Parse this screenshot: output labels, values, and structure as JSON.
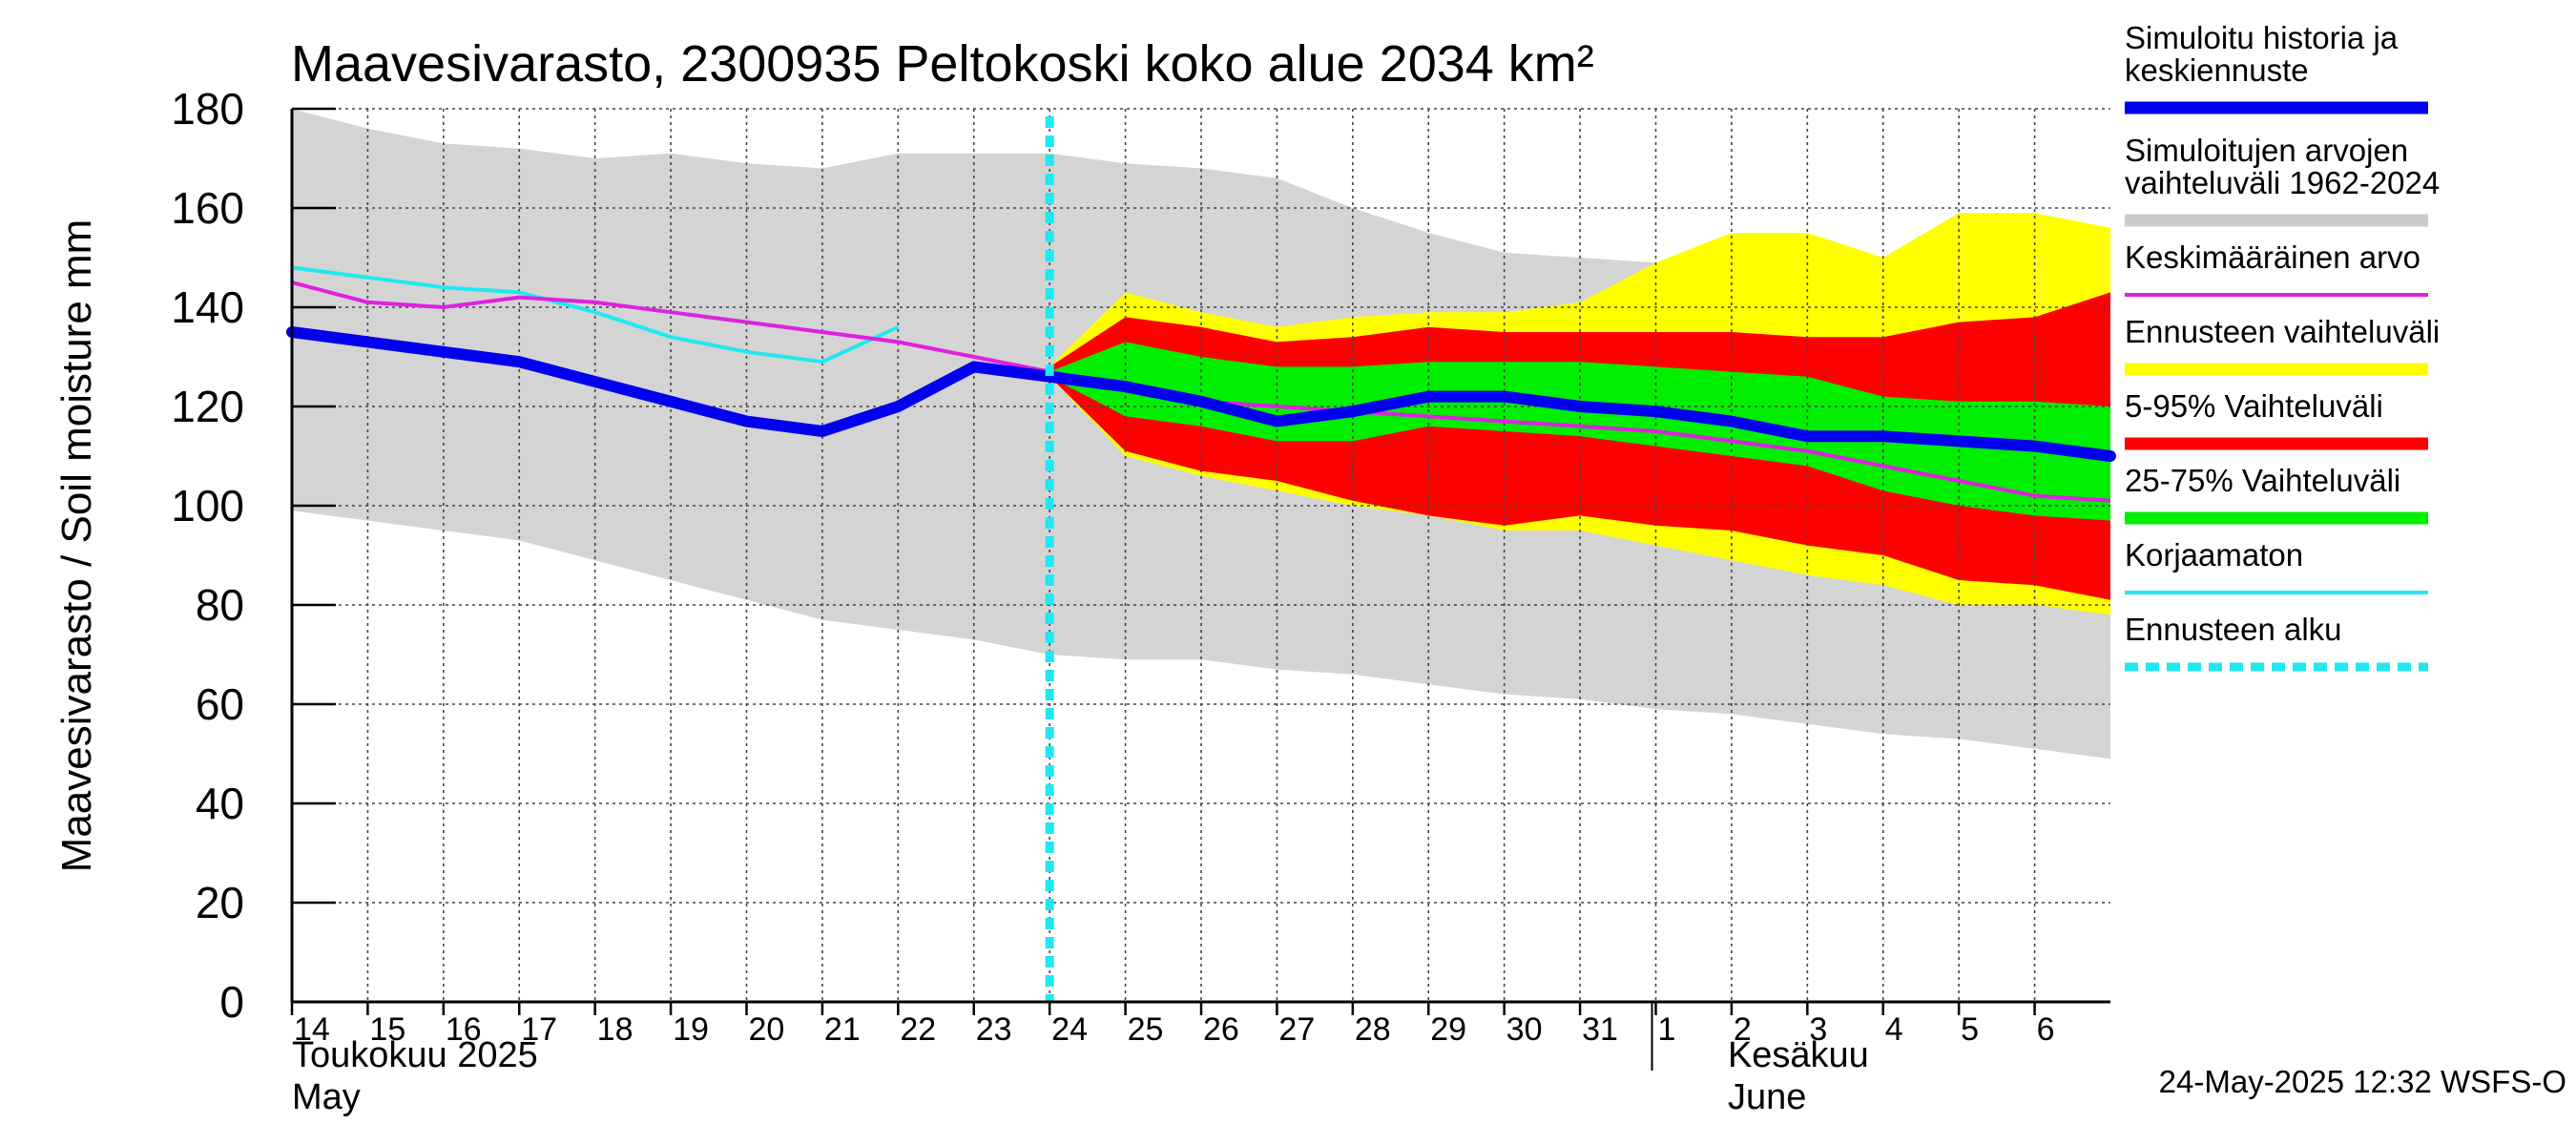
{
  "chart_data": {
    "type": "area",
    "title": "Maavesivarasto, 2300935 Peltokoski koko alue 2034 km²",
    "ylabel": "Maavesivarasto / Soil moisture   mm",
    "ylim": [
      0,
      180
    ],
    "yticks": [
      0,
      20,
      40,
      60,
      80,
      100,
      120,
      140,
      160,
      180
    ],
    "x_day_range": [
      14,
      38
    ],
    "x_tick_labels": [
      "14",
      "15",
      "16",
      "17",
      "18",
      "19",
      "20",
      "21",
      "22",
      "23",
      "24",
      "25",
      "26",
      "27",
      "28",
      "29",
      "30",
      "31",
      "1",
      "2",
      "3",
      "4",
      "5",
      "6"
    ],
    "x_tick_days": [
      14,
      15,
      16,
      17,
      18,
      19,
      20,
      21,
      22,
      23,
      24,
      25,
      26,
      27,
      28,
      29,
      30,
      31,
      32,
      33,
      34,
      35,
      36,
      37
    ],
    "month_labels": [
      {
        "fi": "Toukokuu  2025",
        "en": "May",
        "day": 14
      },
      {
        "fi": "Kesäkuu",
        "en": "June",
        "day": 32.95
      }
    ],
    "month_separator_day": 31.95,
    "forecast_start_day": 24,
    "history_range": {
      "x": [
        14,
        15,
        16,
        17,
        18,
        19,
        20,
        21,
        22,
        23,
        24,
        25,
        26,
        27,
        28,
        29,
        30,
        31,
        32,
        33,
        34,
        35,
        36,
        37,
        38
      ],
      "upper": [
        180,
        176,
        173,
        172,
        170,
        171,
        169,
        168,
        171,
        171,
        171,
        169,
        168,
        166,
        160,
        155,
        151,
        150,
        149,
        148,
        148,
        147,
        145,
        142,
        138
      ],
      "lower": [
        99,
        97,
        95,
        93,
        89,
        85,
        81,
        77,
        75,
        73,
        70,
        69,
        69,
        67,
        66,
        64,
        62,
        61,
        59,
        58,
        56,
        54,
        53,
        51,
        49
      ]
    },
    "forecast_range": {
      "x": [
        24,
        25,
        26,
        27,
        28,
        29,
        30,
        31,
        32,
        33,
        34,
        35,
        36,
        37,
        38
      ],
      "upper": [
        128,
        143,
        139,
        136,
        138,
        139,
        139,
        141,
        149,
        155,
        155,
        150,
        159,
        159,
        156
      ],
      "lower": [
        126,
        110,
        106,
        103,
        100,
        98,
        95,
        95,
        92,
        89,
        86,
        84,
        80,
        80,
        78
      ]
    },
    "band_5_95": {
      "x": [
        24,
        25,
        26,
        27,
        28,
        29,
        30,
        31,
        32,
        33,
        34,
        35,
        36,
        37,
        38
      ],
      "upper": [
        128,
        138,
        136,
        133,
        134,
        136,
        135,
        135,
        135,
        135,
        134,
        134,
        137,
        138,
        143
      ],
      "lower": [
        126,
        111,
        107,
        105,
        101,
        98,
        96,
        98,
        96,
        95,
        92,
        90,
        85,
        84,
        81
      ]
    },
    "band_25_75": {
      "x": [
        24,
        25,
        26,
        27,
        28,
        29,
        30,
        31,
        32,
        33,
        34,
        35,
        36,
        37,
        38
      ],
      "upper": [
        127,
        133,
        130,
        128,
        128,
        129,
        129,
        129,
        128,
        127,
        126,
        122,
        121,
        121,
        120
      ],
      "lower": [
        126,
        118,
        116,
        113,
        113,
        116,
        115,
        114,
        112,
        110,
        108,
        103,
        100,
        98,
        97
      ]
    },
    "series": [
      {
        "name": "Simuloitu historia ja keskiennuste",
        "color": "#0000ee",
        "x": [
          14,
          15,
          16,
          17,
          18,
          19,
          20,
          21,
          22,
          23,
          24,
          25,
          26,
          27,
          28,
          29,
          30,
          31,
          32,
          33,
          34,
          35,
          36,
          37,
          38
        ],
        "values": [
          135,
          133,
          131,
          129,
          125,
          121,
          117,
          115,
          120,
          128,
          126,
          124,
          121,
          117,
          119,
          122,
          122,
          120,
          119,
          117,
          114,
          114,
          113,
          112,
          110
        ]
      },
      {
        "name": "Keskimääräinen arvo",
        "color": "#e020e0",
        "x": [
          14,
          15,
          16,
          17,
          18,
          19,
          20,
          21,
          22,
          23,
          24,
          25,
          26,
          27,
          28,
          29,
          30,
          31,
          32,
          33,
          34,
          35,
          36,
          37,
          38
        ],
        "values": [
          145,
          141,
          140,
          142,
          141,
          139,
          137,
          135,
          133,
          130,
          127,
          124,
          121,
          120,
          119,
          118,
          117,
          116,
          115,
          113,
          111,
          108,
          105,
          102,
          101
        ]
      },
      {
        "name": "Korjaamaton",
        "color": "#20e8f0",
        "x": [
          14,
          15,
          16,
          17,
          18,
          19,
          20,
          21,
          22
        ],
        "values": [
          148,
          146,
          144,
          143,
          139,
          134,
          131,
          129,
          136
        ]
      }
    ],
    "legend": [
      {
        "label": "Simuloitu historia ja keskiennuste",
        "color": "#0000ee",
        "style": "thick"
      },
      {
        "label": "Simuloitujen arvojen vaihteluväli 1962-2024",
        "color": "#cccccc",
        "style": "thick"
      },
      {
        "label": "Keskimääräinen arvo",
        "color": "#e020e0",
        "style": "thin"
      },
      {
        "label": "Ennusteen vaihteluväli",
        "color": "#ffff00",
        "style": "thick"
      },
      {
        "label": "5-95% Vaihteluväli",
        "color": "#ff0000",
        "style": "thick"
      },
      {
        "label": "25-75% Vaihteluväli",
        "color": "#00ee00",
        "style": "thick"
      },
      {
        "label": "Korjaamaton",
        "color": "#20e8f0",
        "style": "thin"
      },
      {
        "label": "Ennusteen alku",
        "color": "#20e8f0",
        "style": "dashed"
      }
    ],
    "footer": "24-May-2025 12:32 WSFS-O"
  }
}
